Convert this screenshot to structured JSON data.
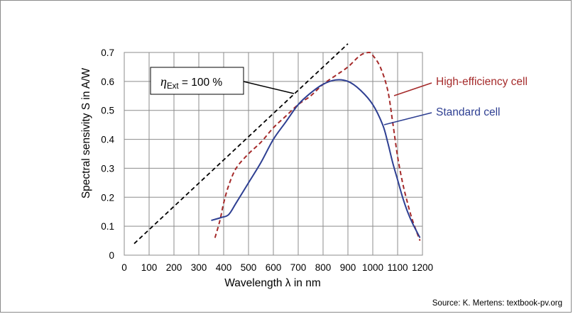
{
  "chart_data": {
    "type": "line",
    "xlabel": "Wavelength λ in nm",
    "ylabel": "Spectral sensivity S in A/W",
    "xlim": [
      0,
      1200
    ],
    "ylim": [
      0,
      0.7
    ],
    "x_ticks": [
      "0",
      "100",
      "200",
      "300",
      "400",
      "500",
      "600",
      "700",
      "800",
      "900",
      "1000",
      "1100",
      "1200"
    ],
    "y_ticks": [
      "0",
      "0.1",
      "0.2",
      "0.3",
      "0.4",
      "0.5",
      "0.6",
      "0.7"
    ],
    "grid": true,
    "series": [
      {
        "name": "High-efficiency cell",
        "color": "#a52a2a",
        "style": "dashed",
        "points": [
          [
            365,
            0.06
          ],
          [
            385,
            0.12
          ],
          [
            400,
            0.18
          ],
          [
            420,
            0.24
          ],
          [
            450,
            0.3
          ],
          [
            500,
            0.35
          ],
          [
            550,
            0.39
          ],
          [
            600,
            0.44
          ],
          [
            650,
            0.48
          ],
          [
            700,
            0.52
          ],
          [
            750,
            0.55
          ],
          [
            800,
            0.59
          ],
          [
            850,
            0.62
          ],
          [
            900,
            0.65
          ],
          [
            950,
            0.69
          ],
          [
            985,
            0.7
          ],
          [
            1000,
            0.69
          ],
          [
            1030,
            0.65
          ],
          [
            1060,
            0.57
          ],
          [
            1080,
            0.46
          ],
          [
            1100,
            0.34
          ],
          [
            1120,
            0.25
          ],
          [
            1140,
            0.18
          ],
          [
            1160,
            0.12
          ],
          [
            1190,
            0.05
          ]
        ]
      },
      {
        "name": "Standard cell",
        "color": "#2e3f92",
        "style": "solid",
        "points": [
          [
            350,
            0.12
          ],
          [
            390,
            0.13
          ],
          [
            420,
            0.14
          ],
          [
            450,
            0.18
          ],
          [
            500,
            0.25
          ],
          [
            550,
            0.32
          ],
          [
            600,
            0.4
          ],
          [
            650,
            0.46
          ],
          [
            700,
            0.52
          ],
          [
            750,
            0.56
          ],
          [
            800,
            0.59
          ],
          [
            850,
            0.605
          ],
          [
            900,
            0.6
          ],
          [
            950,
            0.57
          ],
          [
            1000,
            0.52
          ],
          [
            1040,
            0.45
          ],
          [
            1060,
            0.39
          ],
          [
            1080,
            0.32
          ],
          [
            1100,
            0.26
          ],
          [
            1120,
            0.2
          ],
          [
            1140,
            0.15
          ],
          [
            1160,
            0.11
          ],
          [
            1190,
            0.06
          ]
        ]
      },
      {
        "name": "ηExt = 100 %",
        "color": "#000000",
        "style": "dashed",
        "points": [
          [
            40,
            0.04
          ],
          [
            900,
            0.73
          ]
        ]
      }
    ],
    "annotations": {
      "eta_symbol": "η",
      "eta_sub": "Ext",
      "eta_rest": " = 100 %",
      "high_label": "High-efficiency cell",
      "standard_label": "Standard cell"
    }
  },
  "source": "Source: K. Mertens: textbook-pv.org"
}
